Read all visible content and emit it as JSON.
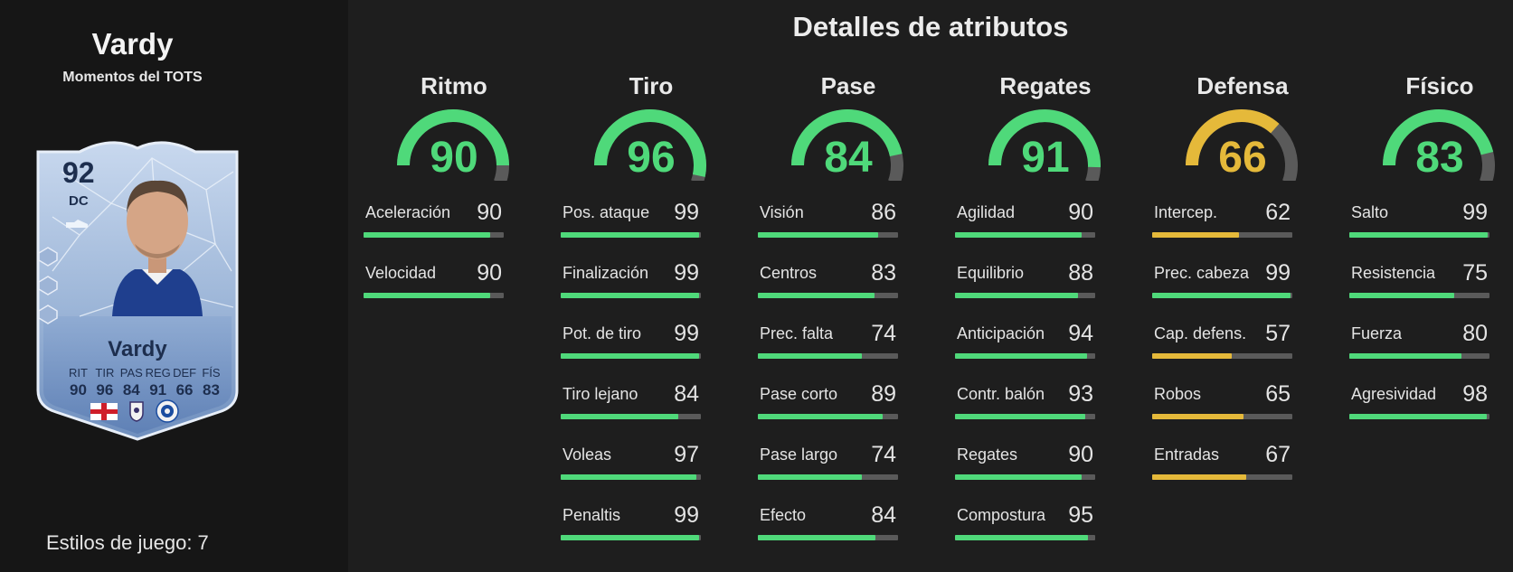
{
  "left": {
    "player_name": "Vardy",
    "card_version": "Momentos del TOTS",
    "playstyles_label": "Estilos de juego: 7"
  },
  "card": {
    "rating": "92",
    "position": "DC",
    "name": "Vardy",
    "stat_labels": [
      "RIT",
      "TIR",
      "PAS",
      "REG",
      "DEF",
      "FÍS"
    ],
    "stat_values": [
      "90",
      "96",
      "84",
      "91",
      "66",
      "83"
    ],
    "nation_icon": "england-flag-icon",
    "league_icon": "premier-league-icon",
    "club_icon": "leicester-crest-icon",
    "playstyle_icons": [
      "playstyle-icon",
      "playstyle-icon",
      "playstyle-icon"
    ]
  },
  "main": {
    "title": "Detalles de atributos",
    "colors": {
      "high": "#4fd97a",
      "mid": "#e5b93a",
      "track": "#5a5a5a"
    },
    "categories": [
      {
        "name": "Ritmo",
        "value": 90,
        "color": "#4fd97a",
        "attributes": [
          {
            "name": "Aceleración",
            "value": 90
          },
          {
            "name": "Velocidad",
            "value": 90
          }
        ]
      },
      {
        "name": "Tiro",
        "value": 96,
        "color": "#4fd97a",
        "attributes": [
          {
            "name": "Pos. ataque",
            "value": 99
          },
          {
            "name": "Finalización",
            "value": 99
          },
          {
            "name": "Pot. de tiro",
            "value": 99
          },
          {
            "name": "Tiro lejano",
            "value": 84
          },
          {
            "name": "Voleas",
            "value": 97
          },
          {
            "name": "Penaltis",
            "value": 99
          }
        ]
      },
      {
        "name": "Pase",
        "value": 84,
        "color": "#4fd97a",
        "attributes": [
          {
            "name": "Visión",
            "value": 86
          },
          {
            "name": "Centros",
            "value": 83
          },
          {
            "name": "Prec. falta",
            "value": 74
          },
          {
            "name": "Pase corto",
            "value": 89
          },
          {
            "name": "Pase largo",
            "value": 74
          },
          {
            "name": "Efecto",
            "value": 84
          }
        ]
      },
      {
        "name": "Regates",
        "value": 91,
        "color": "#4fd97a",
        "attributes": [
          {
            "name": "Agilidad",
            "value": 90
          },
          {
            "name": "Equilibrio",
            "value": 88
          },
          {
            "name": "Anticipación",
            "value": 94
          },
          {
            "name": "Contr. balón",
            "value": 93
          },
          {
            "name": "Regates",
            "value": 90
          },
          {
            "name": "Compostura",
            "value": 95
          }
        ]
      },
      {
        "name": "Defensa",
        "value": 66,
        "color": "#e5b93a",
        "attributes": [
          {
            "name": "Intercep.",
            "value": 62
          },
          {
            "name": "Prec. cabeza",
            "value": 99
          },
          {
            "name": "Cap. defens.",
            "value": 57
          },
          {
            "name": "Robos",
            "value": 65
          },
          {
            "name": "Entradas",
            "value": 67
          }
        ]
      },
      {
        "name": "Físico",
        "value": 83,
        "color": "#4fd97a",
        "attributes": [
          {
            "name": "Salto",
            "value": 99
          },
          {
            "name": "Resistencia",
            "value": 75
          },
          {
            "name": "Fuerza",
            "value": 80
          },
          {
            "name": "Agresividad",
            "value": 98
          }
        ]
      }
    ]
  }
}
